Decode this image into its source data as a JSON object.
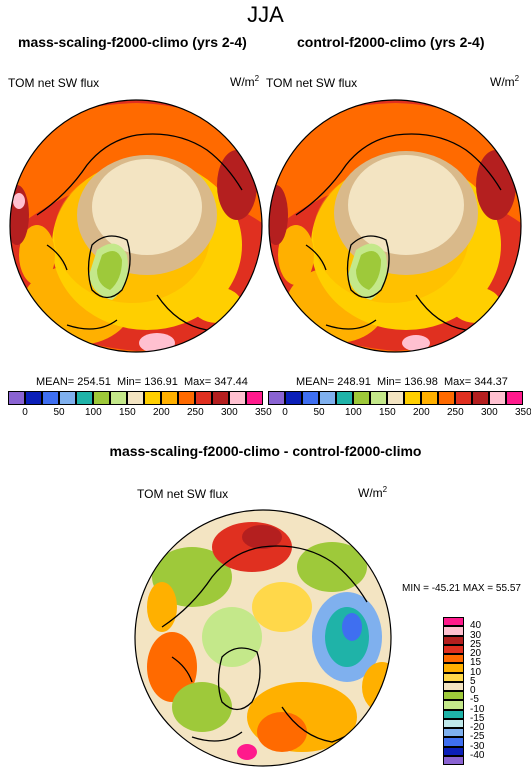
{
  "page_title": "JJA",
  "panels": [
    {
      "title": "mass-scaling-f2000-climo (yrs 2-4)",
      "variable": "TOM net SW flux",
      "units": "W/m",
      "units_sup": "2",
      "mean_text": "MEAN= 254.51",
      "min_text": "Min= 136.91",
      "max_text": "Max= 347.44"
    },
    {
      "title": "control-f2000-climo (yrs 2-4)",
      "variable": "TOM net SW flux",
      "units": "W/m",
      "units_sup": "2",
      "mean_text": "MEAN= 248.91",
      "min_text": "Min= 136.98",
      "max_text": "Max= 344.37"
    }
  ],
  "diff_panel": {
    "title": "mass-scaling-f2000-climo - control-f2000-climo",
    "variable": "TOM net SW flux",
    "units": "W/m",
    "units_sup": "2",
    "minmax_text": "MIN = -45.21  MAX =  55.57"
  },
  "colorbar_abs": {
    "ticks": [
      "0",
      "50",
      "100",
      "150",
      "200",
      "250",
      "300",
      "350"
    ],
    "colors": [
      "#8a63d2",
      "#0b1fb8",
      "#3f6ff0",
      "#7fb0ee",
      "#1fb3a8",
      "#9ec93a",
      "#c4e88a",
      "#f3e4c2",
      "#ffcf00",
      "#ffb000",
      "#ff6a00",
      "#e03020",
      "#b41f1f",
      "#ffc0d0",
      "#ff1a8c"
    ]
  },
  "colorbar_diff": {
    "ticks": [
      "40",
      "30",
      "25",
      "20",
      "15",
      "10",
      "5",
      "0",
      "-5",
      "-10",
      "-15",
      "-20",
      "-25",
      "-30",
      "-40"
    ],
    "colors": [
      "#ff1a8c",
      "#ffc0d0",
      "#b41f1f",
      "#e03020",
      "#ff6a00",
      "#ffb000",
      "#ffd84a",
      "#f3e4c2",
      "#9ec93a",
      "#c4e88a",
      "#1fb3a8",
      "#bfe8ea",
      "#7fb0ee",
      "#3f6ff0",
      "#0b1fb8",
      "#8a63d2"
    ]
  }
}
